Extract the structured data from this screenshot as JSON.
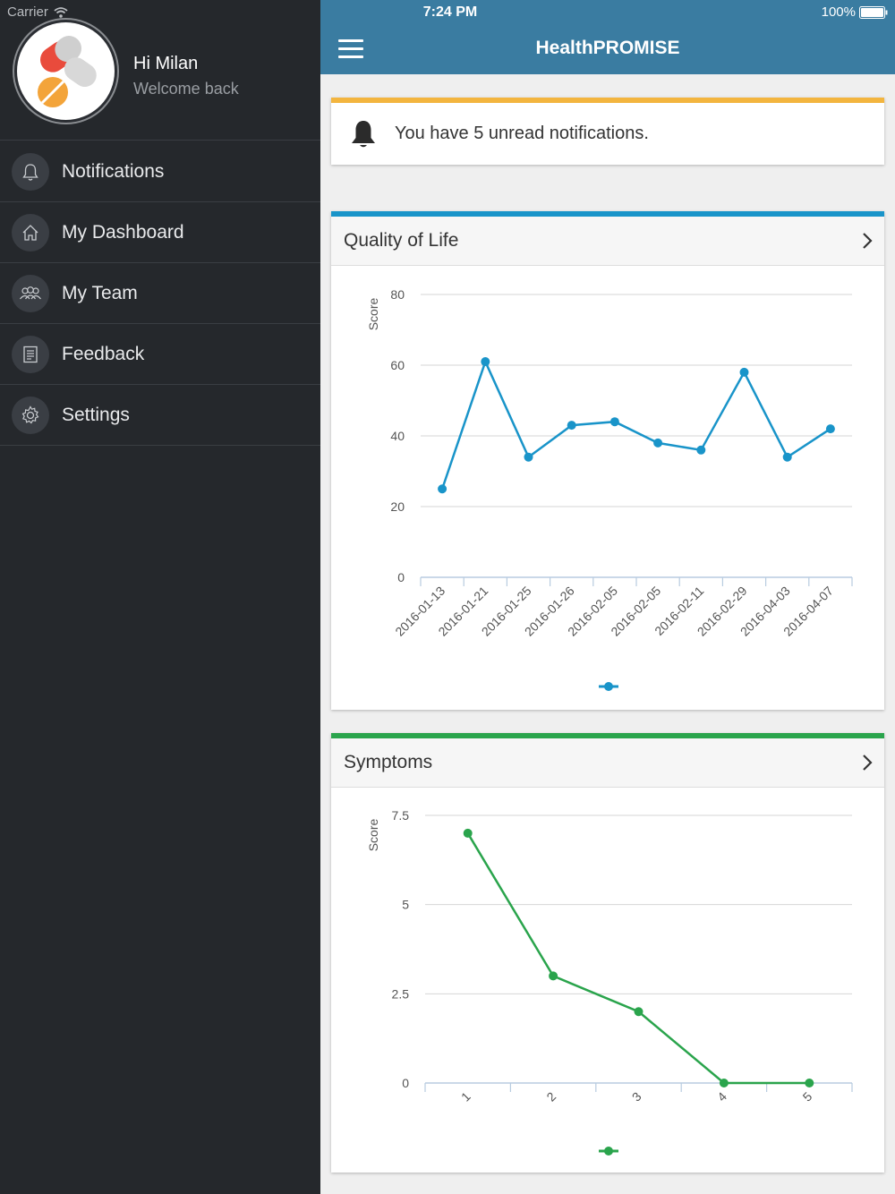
{
  "status": {
    "carrier": "Carrier",
    "time": "7:24 PM",
    "battery": "100%"
  },
  "sidebar": {
    "greeting": "Hi Milan",
    "subtitle": "Welcome back",
    "items": [
      {
        "label": "Notifications",
        "icon": "bell-icon"
      },
      {
        "label": "My Dashboard",
        "icon": "home-icon"
      },
      {
        "label": "My Team",
        "icon": "team-icon"
      },
      {
        "label": "Feedback",
        "icon": "document-icon"
      },
      {
        "label": "Settings",
        "icon": "gear-icon"
      }
    ]
  },
  "header": {
    "title": "HealthPROMISE"
  },
  "notification": {
    "text": "You have 5 unread notifications."
  },
  "colors": {
    "sidebar_bg": "#25282c",
    "header_bg": "#3a7ca1",
    "notif_accent": "#f3b53f",
    "qol_accent": "#1994c9",
    "symptoms_accent": "#2aa44c"
  },
  "chart_data": [
    {
      "type": "line",
      "title": "Quality of Life",
      "ylabel": "Score",
      "xlabel": "",
      "categories": [
        "2016-01-13",
        "2016-01-21",
        "2016-01-25",
        "2016-01-26",
        "2016-02-05",
        "2016-02-05",
        "2016-02-11",
        "2016-02-29",
        "2016-04-03",
        "2016-04-07"
      ],
      "series": [
        {
          "values": [
            25,
            61,
            34,
            43,
            44,
            38,
            36,
            58,
            34,
            42
          ]
        }
      ],
      "ylim": [
        0,
        80
      ],
      "yticks": [
        0,
        20,
        40,
        60,
        80
      ],
      "grid": true,
      "legend": "bottom-center",
      "color": "#1994c9"
    },
    {
      "type": "line",
      "title": "Symptoms",
      "ylabel": "Score",
      "xlabel": "",
      "categories": [
        "1",
        "2",
        "3",
        "4",
        "5"
      ],
      "series": [
        {
          "values": [
            7,
            3,
            2,
            0,
            0
          ]
        }
      ],
      "ylim": [
        0,
        7.5
      ],
      "yticks": [
        "0",
        "2.5",
        "5",
        "7.5"
      ],
      "grid": true,
      "legend": "bottom-center",
      "color": "#2aa44c"
    }
  ]
}
